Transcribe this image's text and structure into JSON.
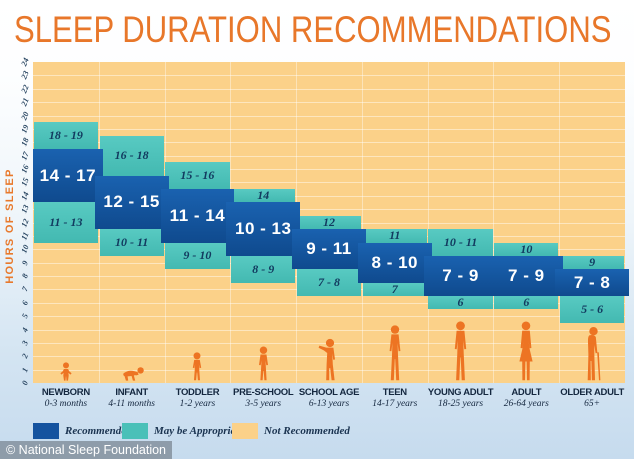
{
  "page": {
    "title": "SLEEP DURATION RECOMMENDATIONS",
    "copyright": "© National Sleep Foundation"
  },
  "colors": {
    "title_orange": "#e8772a",
    "figure_orange": "#ed7423",
    "recommended_blue": "#15539f",
    "may_be_appropriate_teal": "#4ac0b8",
    "not_recommended_orange": "#fbd189",
    "navy_text": "#14273f"
  },
  "chart_data": {
    "type": "range-bar",
    "title": "SLEEP DURATION RECOMMENDATIONS",
    "xlabel": "",
    "ylabel": "HOURS OF SLEEP",
    "ylim": [
      0,
      24
    ],
    "y_tick_step": 1,
    "grid": true,
    "legend_position": "bottom",
    "legend": [
      {
        "key": "recommended",
        "label": "Recommended",
        "color": "#15539f"
      },
      {
        "key": "may_be_appropriate",
        "label": "May be Appropriate",
        "color": "#4ac0b8"
      },
      {
        "key": "not_recommended",
        "label": "Not Recommended",
        "color": "#fbd189"
      }
    ],
    "columns": [
      {
        "group": "NEWBORN",
        "age_range": "0-3 months",
        "figure": "newborn-baby-icon",
        "bands": [
          {
            "type": "may_be_appropriate",
            "label": "18 - 19",
            "from": 17.5,
            "to": 19.5
          },
          {
            "type": "recommended",
            "label": "14 - 17",
            "from": 13.5,
            "to": 17.5
          },
          {
            "type": "may_be_appropriate",
            "label": "11 - 13",
            "from": 10.5,
            "to": 13.5
          }
        ]
      },
      {
        "group": "INFANT",
        "age_range": "4-11 months",
        "figure": "infant-crawling-icon",
        "bands": [
          {
            "type": "may_be_appropriate",
            "label": "16 - 18",
            "from": 15.5,
            "to": 18.5
          },
          {
            "type": "recommended",
            "label": "12 - 15",
            "from": 11.5,
            "to": 15.5
          },
          {
            "type": "may_be_appropriate",
            "label": "10 - 11",
            "from": 9.5,
            "to": 11.5
          }
        ]
      },
      {
        "group": "TODDLER",
        "age_range": "1-2 years",
        "figure": "toddler-icon",
        "bands": [
          {
            "type": "may_be_appropriate",
            "label": "15 - 16",
            "from": 14.5,
            "to": 16.5
          },
          {
            "type": "recommended",
            "label": "11 - 14",
            "from": 10.5,
            "to": 14.5
          },
          {
            "type": "may_be_appropriate",
            "label": "9 - 10",
            "from": 8.5,
            "to": 10.5
          }
        ]
      },
      {
        "group": "PRE-SCHOOL",
        "age_range": "3-5 years",
        "figure": "preschool-child-icon",
        "bands": [
          {
            "type": "may_be_appropriate",
            "label": "14",
            "from": 13.5,
            "to": 14.5
          },
          {
            "type": "recommended",
            "label": "10 - 13",
            "from": 9.5,
            "to": 13.5
          },
          {
            "type": "may_be_appropriate",
            "label": "8 - 9",
            "from": 7.5,
            "to": 9.5
          }
        ]
      },
      {
        "group": "SCHOOL AGE",
        "age_range": "6-13 years",
        "figure": "school-age-child-icon",
        "bands": [
          {
            "type": "may_be_appropriate",
            "label": "12",
            "from": 11.5,
            "to": 12.5
          },
          {
            "type": "recommended",
            "label": "9 - 11",
            "from": 8.5,
            "to": 11.5
          },
          {
            "type": "may_be_appropriate",
            "label": "7 - 8",
            "from": 6.5,
            "to": 8.5
          }
        ]
      },
      {
        "group": "TEEN",
        "age_range": "14-17 years",
        "figure": "teen-icon",
        "bands": [
          {
            "type": "may_be_appropriate",
            "label": "11",
            "from": 10.5,
            "to": 11.5
          },
          {
            "type": "recommended",
            "label": "8 - 10",
            "from": 7.5,
            "to": 10.5
          },
          {
            "type": "may_be_appropriate",
            "label": "7",
            "from": 6.5,
            "to": 7.5
          }
        ]
      },
      {
        "group": "YOUNG ADULT",
        "age_range": "18-25 years",
        "figure": "young-adult-icon",
        "bands": [
          {
            "type": "may_be_appropriate",
            "label": "10 - 11",
            "from": 9.5,
            "to": 11.5
          },
          {
            "type": "recommended",
            "label": "7 - 9",
            "from": 6.5,
            "to": 9.5
          },
          {
            "type": "may_be_appropriate",
            "label": "6",
            "from": 5.5,
            "to": 6.5
          }
        ]
      },
      {
        "group": "ADULT",
        "age_range": "26-64 years",
        "figure": "adult-icon",
        "bands": [
          {
            "type": "may_be_appropriate",
            "label": "10",
            "from": 9.5,
            "to": 10.5
          },
          {
            "type": "recommended",
            "label": "7 - 9",
            "from": 6.5,
            "to": 9.5
          },
          {
            "type": "may_be_appropriate",
            "label": "6",
            "from": 5.5,
            "to": 6.5
          }
        ]
      },
      {
        "group": "OLDER ADULT",
        "age_range": "65+",
        "figure": "older-adult-with-cane-icon",
        "bands": [
          {
            "type": "may_be_appropriate",
            "label": "9",
            "from": 8.5,
            "to": 9.5
          },
          {
            "type": "recommended",
            "label": "7 - 8",
            "from": 6.5,
            "to": 8.5
          },
          {
            "type": "may_be_appropriate",
            "label": "5 - 6",
            "from": 4.5,
            "to": 6.5
          }
        ]
      }
    ]
  }
}
